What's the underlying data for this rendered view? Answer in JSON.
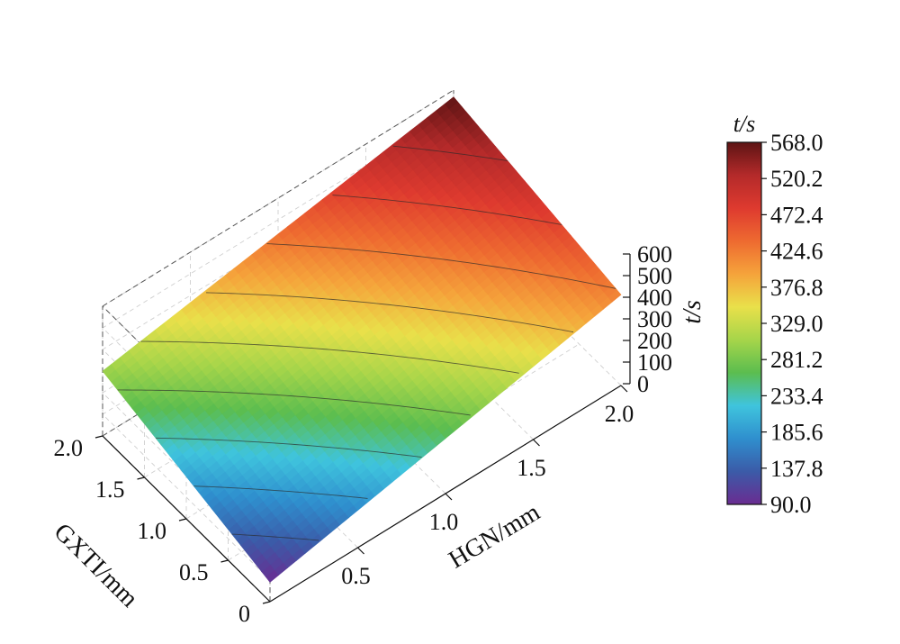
{
  "chart_data": {
    "type": "surface3d",
    "axes": {
      "x": {
        "label": "HGN/mm",
        "range": [
          0,
          2.0
        ],
        "ticks": [
          "0.5",
          "1.0",
          "1.5",
          "2.0"
        ],
        "tick_values": [
          0.5,
          1.0,
          1.5,
          2.0
        ]
      },
      "y": {
        "label": "GXTI/mm",
        "range": [
          0,
          2.0
        ],
        "ticks": [
          "0",
          "0.5",
          "1.0",
          "1.5",
          "2.0"
        ],
        "tick_values": [
          0,
          0.5,
          1.0,
          1.5,
          2.0
        ]
      },
      "z": {
        "label": "t/s",
        "range": [
          0,
          600
        ],
        "ticks": [
          "0",
          "100",
          "200",
          "300",
          "400",
          "500",
          "600"
        ],
        "tick_values": [
          0,
          100,
          200,
          300,
          400,
          500,
          600
        ]
      }
    },
    "surface": {
      "x": [
        0,
        2.0
      ],
      "y": [
        0,
        2.0
      ],
      "z": [
        [
          90,
          420
        ],
        [
          300,
          568
        ]
      ],
      "z_note_units": "t/s"
    },
    "colorbar": {
      "title": "t/s",
      "ticks": [
        "568.0",
        "520.2",
        "472.4",
        "424.6",
        "376.8",
        "329.0",
        "281.2",
        "233.4",
        "185.6",
        "137.8",
        "90.0"
      ],
      "min": 90.0,
      "max": 568.0
    },
    "colormap": [
      "#6a2c91",
      "#3b5ba8",
      "#2f8fce",
      "#3fc4dd",
      "#5bbd4f",
      "#a6d54a",
      "#e9e04a",
      "#f5a33b",
      "#ee6a30",
      "#de3a2f",
      "#b42a2a",
      "#5e1414"
    ],
    "contour_levels": [
      137.8,
      185.6,
      233.4,
      281.2,
      329.0,
      376.8,
      424.6,
      472.4,
      520.2
    ],
    "grid": true,
    "legend": "colorbar-right"
  }
}
